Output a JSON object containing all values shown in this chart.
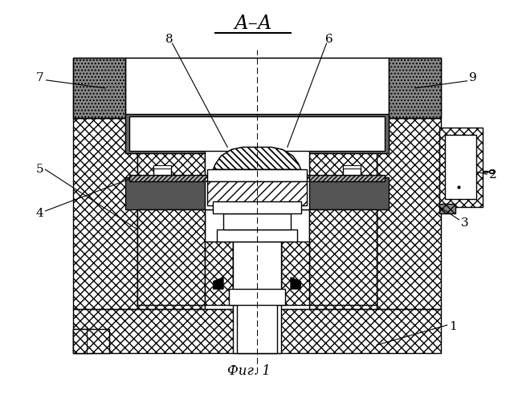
{
  "title": "А–А",
  "caption": "Фиг. 1",
  "bg_color": "#ffffff",
  "line_color": "#000000",
  "gray_dark": "#555555",
  "gray_med": "#999999",
  "gray_light": "#bbbbbb",
  "lw": 1.0
}
